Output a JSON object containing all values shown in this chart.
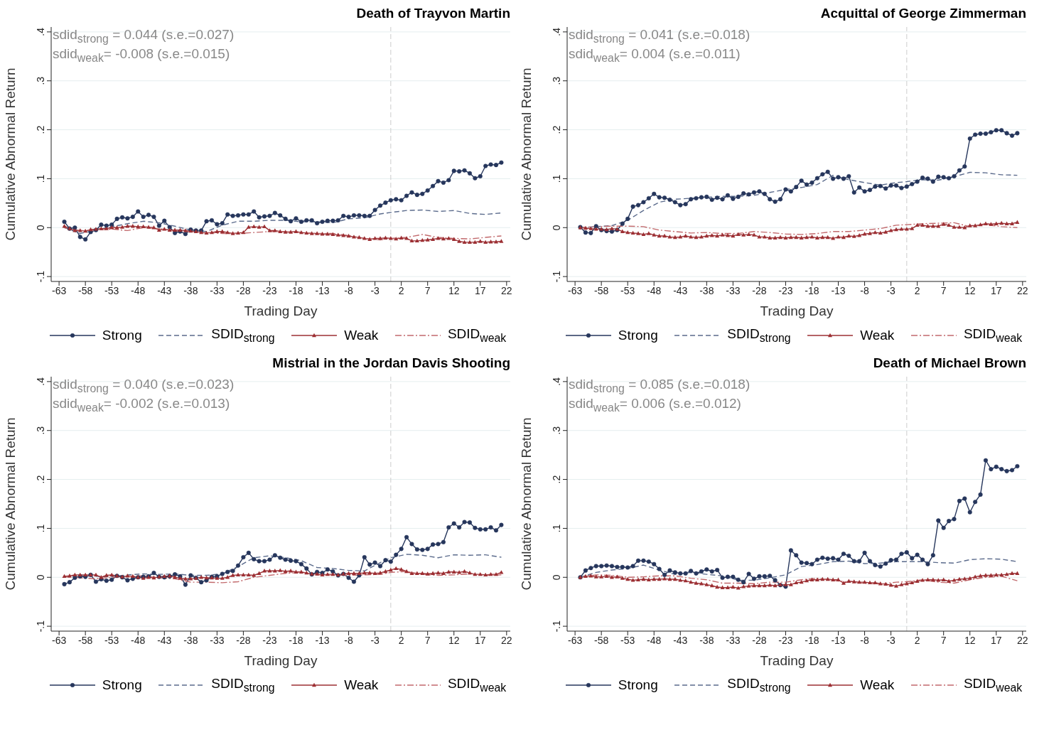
{
  "chart_data": [
    {
      "type": "line",
      "title": "Death of Trayvon Martin",
      "xlabel": "Trading Day",
      "ylabel": "Cumulative Abnormal Return",
      "annotations": [
        "sdid$_{strong}$ = 0.044 (s.e.=0.027)",
        "sdid$_{weak}$= -0.008 (s.e.=0.015)"
      ],
      "xlim": [
        -64.5,
        22.7
      ],
      "ylim": [
        -0.11,
        0.41
      ],
      "xticks": [
        -63,
        -58,
        -53,
        -48,
        -43,
        -38,
        -33,
        -28,
        -23,
        -18,
        -13,
        -8,
        -3,
        2,
        7,
        12,
        17,
        22
      ],
      "yticks": [
        {
          "value": -0.1,
          "label": "-.1"
        },
        {
          "value": 0,
          "label": "0"
        },
        {
          "value": 0.1,
          "label": ".1"
        },
        {
          "value": 0.2,
          "label": ".2"
        },
        {
          "value": 0.3,
          "label": ".3"
        },
        {
          "value": 0.4,
          "label": ".4"
        }
      ],
      "grid": "y",
      "legend": "bottom",
      "ref_lines": [
        {
          "axis": "x",
          "value": 0,
          "color": "#cccccc",
          "line_style": "dashed"
        }
      ],
      "x": [
        -62,
        -61,
        -60,
        -59,
        -58,
        -57,
        -56,
        -55,
        -54,
        -53,
        -52,
        -51,
        -50,
        -49,
        -48,
        -47,
        -46,
        -45,
        -44,
        -43,
        -42,
        -41,
        -40,
        -39,
        -38,
        -37,
        -36,
        -35,
        -34,
        -33,
        -32,
        -31,
        -30,
        -29,
        -28,
        -27,
        -26,
        -25,
        -24,
        -23,
        -22,
        -21,
        -20,
        -19,
        -18,
        -17,
        -16,
        -15,
        -14,
        -13,
        -12,
        -11,
        -10,
        -9,
        -8,
        -7,
        -6,
        -5,
        -4,
        -3,
        -2,
        -1,
        0,
        1,
        2,
        3,
        4,
        5,
        6,
        7,
        8,
        9,
        10,
        11,
        12,
        13,
        14,
        15,
        16,
        17,
        18,
        19,
        20,
        21
      ],
      "series": [
        {
          "name": "Strong",
          "color": "#26365c",
          "marker": "circle",
          "line_style": "solid",
          "values": [
            0.012,
            -0.002,
            0,
            -0.019,
            -0.024,
            -0.009,
            -0.005,
            0.006,
            0.004,
            0.006,
            0.018,
            0.021,
            0.019,
            0.022,
            0.033,
            0.022,
            0.026,
            0.022,
            0.004,
            0.014,
            0.001,
            -0.011,
            -0.008,
            -0.013,
            -0.004,
            -0.006,
            -0.006,
            0.013,
            0.015,
            0.007,
            0.009,
            0.027,
            0.024,
            0.025,
            0.027,
            0.027,
            0.033,
            0.021,
            0.023,
            0.024,
            0.03,
            0.025,
            0.018,
            0.013,
            0.019,
            0.012,
            0.015,
            0.015,
            0.009,
            0.012,
            0.014,
            0.014,
            0.015,
            0.024,
            0.022,
            0.025,
            0.025,
            0.024,
            0.024,
            0.036,
            0.045,
            0.051,
            0.056,
            0.058,
            0.056,
            0.065,
            0.072,
            0.067,
            0.069,
            0.076,
            0.085,
            0.095,
            0.092,
            0.097,
            0.116,
            0.115,
            0.117,
            0.111,
            0.101,
            0.105,
            0.126,
            0.129,
            0.128,
            0.133
          ]
        },
        {
          "name": "SDID$_{strong}$",
          "color": "#5b6b8c",
          "marker": "none",
          "line_style": "dashed",
          "x": [
            -62,
            -59,
            -56,
            -53,
            -50,
            -47,
            -44,
            -41,
            -38,
            -35,
            -32,
            -29,
            -26,
            -23,
            -20,
            -17,
            -14,
            -11,
            -8,
            -5,
            -2,
            0,
            3,
            6,
            9,
            12,
            15,
            18,
            21
          ],
          "values": [
            0,
            -0.012,
            -0.005,
            0.002,
            0.008,
            0.013,
            0.01,
            0.003,
            -0.005,
            -0.008,
            0.005,
            0.013,
            0.013,
            0.015,
            0.015,
            0.012,
            0.012,
            0.01,
            0.018,
            0.02,
            0.028,
            0.031,
            0.035,
            0.036,
            0.033,
            0.035,
            0.029,
            0.027,
            0.03
          ]
        },
        {
          "name": "Weak",
          "color": "#9c2f33",
          "marker": "triangle",
          "line_style": "solid",
          "values": [
            0.003,
            -0.002,
            -0.006,
            -0.006,
            -0.007,
            -0.004,
            -0.003,
            -0.002,
            -0.002,
            0.0,
            0.0,
            0.001,
            0.003,
            0.003,
            0.002,
            0.002,
            0.001,
            0.0,
            -0.005,
            -0.003,
            -0.005,
            -0.005,
            -0.005,
            -0.006,
            -0.007,
            -0.008,
            -0.01,
            -0.011,
            -0.01,
            -0.008,
            -0.008,
            -0.01,
            -0.012,
            -0.011,
            -0.01,
            0.001,
            0.002,
            0.001,
            0.002,
            -0.006,
            -0.006,
            -0.008,
            -0.009,
            -0.009,
            -0.008,
            -0.01,
            -0.011,
            -0.012,
            -0.012,
            -0.013,
            -0.013,
            -0.014,
            -0.015,
            -0.016,
            -0.017,
            -0.019,
            -0.02,
            -0.022,
            -0.024,
            -0.022,
            -0.022,
            -0.021,
            -0.022,
            -0.023,
            -0.021,
            -0.022,
            -0.027,
            -0.027,
            -0.026,
            -0.025,
            -0.024,
            -0.022,
            -0.023,
            -0.022,
            -0.024,
            -0.028,
            -0.03,
            -0.03,
            -0.03,
            -0.028,
            -0.03,
            -0.029,
            -0.029,
            -0.028
          ]
        },
        {
          "name": "SDID$_{weak}$",
          "color": "#c26a6d",
          "marker": "none",
          "line_style": "dashdot",
          "x": [
            -62,
            -59,
            -56,
            -53,
            -50,
            -47,
            -44,
            -41,
            -38,
            -35,
            -32,
            -29,
            -26,
            -23,
            -20,
            -17,
            -14,
            -11,
            -8,
            -5,
            -2,
            0,
            3,
            6,
            9,
            12,
            15,
            18,
            21
          ],
          "values": [
            0,
            -0.006,
            -0.005,
            -0.003,
            -0.006,
            0.0,
            -0.002,
            -0.007,
            -0.008,
            -0.01,
            -0.012,
            -0.012,
            -0.01,
            -0.008,
            -0.008,
            -0.01,
            -0.012,
            -0.012,
            -0.016,
            -0.022,
            -0.025,
            -0.022,
            -0.02,
            -0.014,
            -0.02,
            -0.022,
            -0.023,
            -0.02,
            -0.017
          ]
        }
      ]
    },
    {
      "type": "line",
      "title": "Acquittal of George Zimmerman",
      "xlabel": "Trading Day",
      "ylabel": "Cumulative Abnormal Return",
      "annotations": [
        "sdid$_{strong}$ = 0.041 (s.e.=0.018)",
        "sdid$_{weak}$= 0.004 (s.e.=0.011)"
      ],
      "xlim": [
        -64.5,
        22.7
      ],
      "ylim": [
        -0.11,
        0.41
      ],
      "xticks": [
        -63,
        -58,
        -53,
        -48,
        -43,
        -38,
        -33,
        -28,
        -23,
        -18,
        -13,
        -8,
        -3,
        2,
        7,
        12,
        17,
        22
      ],
      "yticks": [
        {
          "value": -0.1,
          "label": "-.1"
        },
        {
          "value": 0,
          "label": "0"
        },
        {
          "value": 0.1,
          "label": ".1"
        },
        {
          "value": 0.2,
          "label": ".2"
        },
        {
          "value": 0.3,
          "label": ".3"
        },
        {
          "value": 0.4,
          "label": ".4"
        }
      ],
      "grid": "y",
      "legend": "bottom",
      "ref_lines": [
        {
          "axis": "x",
          "value": 0,
          "color": "#cccccc",
          "line_style": "dashed"
        }
      ],
      "x": [
        -62,
        -61,
        -60,
        -59,
        -58,
        -57,
        -56,
        -55,
        -54,
        -53,
        -52,
        -51,
        -50,
        -49,
        -48,
        -47,
        -46,
        -45,
        -44,
        -43,
        -42,
        -41,
        -40,
        -39,
        -38,
        -37,
        -36,
        -35,
        -34,
        -33,
        -32,
        -31,
        -30,
        -29,
        -28,
        -27,
        -26,
        -25,
        -24,
        -23,
        -22,
        -21,
        -20,
        -19,
        -18,
        -17,
        -16,
        -15,
        -14,
        -13,
        -12,
        -11,
        -10,
        -9,
        -8,
        -7,
        -6,
        -5,
        -4,
        -3,
        -2,
        -1,
        0,
        1,
        2,
        3,
        4,
        5,
        6,
        7,
        8,
        9,
        10,
        11,
        12,
        13,
        14,
        15,
        16,
        17,
        18,
        19,
        20,
        21
      ],
      "series": [
        {
          "name": "Strong",
          "color": "#26365c",
          "marker": "circle",
          "line_style": "solid",
          "values": [
            0.001,
            -0.01,
            -0.011,
            0.003,
            -0.005,
            -0.007,
            -0.008,
            -0.005,
            0.008,
            0.018,
            0.043,
            0.046,
            0.052,
            0.06,
            0.069,
            0.062,
            0.061,
            0.057,
            0.052,
            0.046,
            0.048,
            0.058,
            0.06,
            0.062,
            0.063,
            0.057,
            0.061,
            0.058,
            0.066,
            0.059,
            0.063,
            0.07,
            0.068,
            0.072,
            0.074,
            0.069,
            0.058,
            0.053,
            0.058,
            0.078,
            0.074,
            0.083,
            0.096,
            0.088,
            0.092,
            0.101,
            0.109,
            0.114,
            0.1,
            0.103,
            0.1,
            0.105,
            0.072,
            0.082,
            0.074,
            0.077,
            0.084,
            0.085,
            0.08,
            0.086,
            0.086,
            0.081,
            0.084,
            0.089,
            0.094,
            0.102,
            0.1,
            0.094,
            0.104,
            0.103,
            0.101,
            0.105,
            0.117,
            0.125,
            0.182,
            0.19,
            0.192,
            0.192,
            0.195,
            0.199,
            0.199,
            0.193,
            0.188,
            0.193
          ]
        },
        {
          "name": "SDID$_{strong}$",
          "color": "#5b6b8c",
          "marker": "none",
          "line_style": "dashed",
          "x": [
            -62,
            -59,
            -56,
            -53,
            -50,
            -47,
            -44,
            -41,
            -38,
            -35,
            -32,
            -29,
            -26,
            -23,
            -20,
            -17,
            -14,
            -11,
            -8,
            -5,
            -2,
            0,
            3,
            6,
            9,
            12,
            15,
            18,
            21
          ],
          "values": [
            0,
            0.002,
            0.004,
            0.015,
            0.035,
            0.052,
            0.058,
            0.06,
            0.062,
            0.064,
            0.064,
            0.066,
            0.072,
            0.078,
            0.082,
            0.088,
            0.107,
            0.098,
            0.092,
            0.087,
            0.092,
            0.094,
            0.098,
            0.097,
            0.104,
            0.113,
            0.112,
            0.108,
            0.107
          ]
        },
        {
          "name": "Weak",
          "color": "#9c2f33",
          "marker": "triangle",
          "line_style": "solid",
          "values": [
            0.0,
            -0.001,
            -0.002,
            -0.003,
            -0.003,
            -0.004,
            -0.002,
            -0.003,
            -0.008,
            -0.01,
            -0.011,
            -0.012,
            -0.014,
            -0.012,
            -0.015,
            -0.017,
            -0.017,
            -0.019,
            -0.02,
            -0.019,
            -0.017,
            -0.019,
            -0.02,
            -0.019,
            -0.017,
            -0.016,
            -0.017,
            -0.015,
            -0.016,
            -0.017,
            -0.014,
            -0.015,
            -0.014,
            -0.015,
            -0.019,
            -0.019,
            -0.021,
            -0.021,
            -0.02,
            -0.021,
            -0.02,
            -0.02,
            -0.021,
            -0.02,
            -0.019,
            -0.021,
            -0.02,
            -0.02,
            -0.022,
            -0.019,
            -0.02,
            -0.017,
            -0.018,
            -0.016,
            -0.013,
            -0.012,
            -0.01,
            -0.011,
            -0.009,
            -0.006,
            -0.004,
            -0.003,
            -0.003,
            -0.002,
            0.005,
            0.005,
            0.003,
            0.003,
            0.003,
            0.007,
            0.005,
            0.001,
            0.001,
            0.0,
            0.004,
            0.004,
            0.006,
            0.008,
            0.007,
            0.008,
            0.009,
            0.008,
            0.008,
            0.011
          ]
        },
        {
          "name": "SDID$_{weak}$",
          "color": "#c26a6d",
          "marker": "none",
          "line_style": "dashdot",
          "x": [
            -62,
            -59,
            -56,
            -53,
            -50,
            -47,
            -44,
            -41,
            -38,
            -35,
            -32,
            -29,
            -26,
            -23,
            -20,
            -17,
            -14,
            -11,
            -8,
            -5,
            -2,
            0,
            3,
            6,
            9,
            12,
            15,
            18,
            21
          ],
          "values": [
            0,
            0.002,
            0.003,
            0.003,
            0.002,
            -0.005,
            -0.008,
            -0.011,
            -0.01,
            -0.012,
            -0.012,
            -0.008,
            -0.01,
            -0.013,
            -0.014,
            -0.012,
            -0.008,
            -0.008,
            -0.005,
            -0.002,
            0.005,
            0.006,
            0.008,
            0.009,
            0.01,
            0.002,
            0.006,
            0.002,
            0.0
          ]
        }
      ]
    },
    {
      "type": "line",
      "title": "Mistrial in the Jordan Davis Shooting",
      "xlabel": "Trading Day",
      "ylabel": "Cumulative Abnormal Return",
      "annotations": [
        "sdid$_{strong}$ = 0.040 (s.e.=0.023)",
        "sdid$_{weak}$= -0.002 (s.e.=0.013)"
      ],
      "xlim": [
        -64.5,
        22.7
      ],
      "ylim": [
        -0.11,
        0.41
      ],
      "xticks": [
        -63,
        -58,
        -53,
        -48,
        -43,
        -38,
        -33,
        -28,
        -23,
        -18,
        -13,
        -8,
        -3,
        2,
        7,
        12,
        17,
        22
      ],
      "yticks": [
        {
          "value": -0.1,
          "label": "-.1"
        },
        {
          "value": 0,
          "label": "0"
        },
        {
          "value": 0.1,
          "label": ".1"
        },
        {
          "value": 0.2,
          "label": ".2"
        },
        {
          "value": 0.3,
          "label": ".3"
        },
        {
          "value": 0.4,
          "label": ".4"
        }
      ],
      "grid": "y",
      "legend": "bottom",
      "ref_lines": [
        {
          "axis": "x",
          "value": 0,
          "color": "#cccccc",
          "line_style": "dashed"
        }
      ],
      "x": [
        -62,
        -61,
        -60,
        -59,
        -58,
        -57,
        -56,
        -55,
        -54,
        -53,
        -52,
        -51,
        -50,
        -49,
        -48,
        -47,
        -46,
        -45,
        -44,
        -43,
        -42,
        -41,
        -40,
        -39,
        -38,
        -37,
        -36,
        -35,
        -34,
        -33,
        -32,
        -31,
        -30,
        -29,
        -28,
        -27,
        -26,
        -25,
        -24,
        -23,
        -22,
        -21,
        -20,
        -19,
        -18,
        -17,
        -16,
        -15,
        -14,
        -13,
        -12,
        -11,
        -10,
        -9,
        -8,
        -7,
        -6,
        -5,
        -4,
        -3,
        -2,
        -1,
        0,
        1,
        2,
        3,
        4,
        5,
        6,
        7,
        8,
        9,
        10,
        11,
        12,
        13,
        14,
        15,
        16,
        17,
        18,
        19,
        20,
        21
      ],
      "series": [
        {
          "name": "Strong",
          "color": "#26365c",
          "marker": "circle",
          "line_style": "solid",
          "values": [
            -0.014,
            -0.01,
            -0.001,
            0.002,
            0.001,
            0.005,
            -0.009,
            -0.004,
            -0.007,
            -0.005,
            0.003,
            0.0,
            -0.006,
            -0.003,
            0.0,
            0.001,
            0.002,
            0.009,
            0.001,
            0.0,
            0.002,
            0.006,
            0.002,
            -0.015,
            0.004,
            -0.001,
            -0.01,
            -0.006,
            0.001,
            0.002,
            0.007,
            0.011,
            0.013,
            0.024,
            0.041,
            0.05,
            0.037,
            0.033,
            0.033,
            0.036,
            0.045,
            0.04,
            0.036,
            0.034,
            0.033,
            0.027,
            0.018,
            0.006,
            0.011,
            0.009,
            0.016,
            0.012,
            0.004,
            0.007,
            -0.001,
            -0.009,
            0.004,
            0.041,
            0.026,
            0.03,
            0.023,
            0.035,
            0.032,
            0.046,
            0.058,
            0.082,
            0.068,
            0.057,
            0.056,
            0.058,
            0.067,
            0.068,
            0.072,
            0.102,
            0.11,
            0.102,
            0.113,
            0.112,
            0.101,
            0.098,
            0.098,
            0.102,
            0.096,
            0.107
          ]
        },
        {
          "name": "SDID$_{strong}$",
          "color": "#5b6b8c",
          "marker": "none",
          "line_style": "dashed",
          "x": [
            -62,
            -59,
            -56,
            -53,
            -50,
            -47,
            -44,
            -41,
            -38,
            -35,
            -32,
            -29,
            -26,
            -23,
            -20,
            -17,
            -14,
            -11,
            -8,
            -5,
            -2,
            0,
            3,
            6,
            9,
            12,
            15,
            18,
            21
          ],
          "values": [
            0.002,
            0.003,
            0.002,
            0.001,
            0.005,
            0.007,
            0.006,
            0.007,
            0.004,
            0.004,
            0.007,
            0.022,
            0.04,
            0.044,
            0.04,
            0.034,
            0.02,
            0.018,
            0.014,
            0.013,
            0.03,
            0.04,
            0.047,
            0.045,
            0.04,
            0.046,
            0.045,
            0.046,
            0.041
          ]
        },
        {
          "name": "Weak",
          "color": "#9c2f33",
          "marker": "triangle",
          "line_style": "solid",
          "values": [
            0.002,
            0.003,
            0.005,
            0.005,
            0.005,
            0.005,
            0.005,
            0.0,
            0.004,
            0.005,
            0.003,
            0.001,
            0.003,
            0.002,
            0.0,
            -0.002,
            0.0,
            -0.001,
            0.001,
            0.002,
            0.003,
            0.0,
            -0.002,
            -0.003,
            -0.003,
            -0.002,
            0.0,
            -0.001,
            -0.001,
            -0.002,
            -0.002,
            0.0,
            0.004,
            0.005,
            0.005,
            0.005,
            0.004,
            0.008,
            0.013,
            0.013,
            0.013,
            0.014,
            0.012,
            0.013,
            0.011,
            0.011,
            0.009,
            0.007,
            0.007,
            0.005,
            0.006,
            0.006,
            0.005,
            0.007,
            0.008,
            0.008,
            0.008,
            0.009,
            0.009,
            0.008,
            0.009,
            0.012,
            0.015,
            0.018,
            0.016,
            0.012,
            0.008,
            0.008,
            0.008,
            0.007,
            0.008,
            0.009,
            0.008,
            0.011,
            0.011,
            0.01,
            0.012,
            0.009,
            0.006,
            0.006,
            0.005,
            0.006,
            0.006,
            0.01
          ]
        },
        {
          "name": "SDID$_{weak}$",
          "color": "#c26a6d",
          "marker": "none",
          "line_style": "dashdot",
          "x": [
            -62,
            -59,
            -56,
            -53,
            -50,
            -47,
            -44,
            -41,
            -38,
            -35,
            -32,
            -29,
            -26,
            -23,
            -20,
            -17,
            -14,
            -11,
            -8,
            -5,
            -2,
            0,
            3,
            6,
            9,
            12,
            15,
            18,
            21
          ],
          "values": [
            0.001,
            -0.001,
            -0.003,
            0.0,
            0.002,
            0.003,
            -0.001,
            -0.003,
            -0.01,
            -0.01,
            -0.011,
            -0.009,
            0.0,
            0.004,
            0.008,
            0.01,
            0.005,
            0.005,
            0.004,
            0.005,
            0.006,
            0.01,
            0.012,
            0.006,
            0.004,
            0.005,
            0.007,
            0.004,
            0.005
          ]
        }
      ]
    },
    {
      "type": "line",
      "title": "Death of Michael Brown",
      "xlabel": "Trading Day",
      "ylabel": "Cumulative Abnormal Return",
      "annotations": [
        "sdid$_{strong}$ = 0.085 (s.e.=0.018)",
        "sdid$_{weak}$= 0.006 (s.e.=0.012)"
      ],
      "xlim": [
        -64.5,
        22.7
      ],
      "ylim": [
        -0.11,
        0.41
      ],
      "xticks": [
        -63,
        -58,
        -53,
        -48,
        -43,
        -38,
        -33,
        -28,
        -23,
        -18,
        -13,
        -8,
        -3,
        2,
        7,
        12,
        17,
        22
      ],
      "yticks": [
        {
          "value": -0.1,
          "label": "-.1"
        },
        {
          "value": 0,
          "label": "0"
        },
        {
          "value": 0.1,
          "label": ".1"
        },
        {
          "value": 0.2,
          "label": ".2"
        },
        {
          "value": 0.3,
          "label": ".3"
        },
        {
          "value": 0.4,
          "label": ".4"
        }
      ],
      "grid": "y",
      "legend": "bottom",
      "ref_lines": [
        {
          "axis": "x",
          "value": 0,
          "color": "#cccccc",
          "line_style": "dashed"
        }
      ],
      "x": [
        -62,
        -61,
        -60,
        -59,
        -58,
        -57,
        -56,
        -55,
        -54,
        -53,
        -52,
        -51,
        -50,
        -49,
        -48,
        -47,
        -46,
        -45,
        -44,
        -43,
        -42,
        -41,
        -40,
        -39,
        -38,
        -37,
        -36,
        -35,
        -34,
        -33,
        -32,
        -31,
        -30,
        -29,
        -28,
        -27,
        -26,
        -25,
        -24,
        -23,
        -22,
        -21,
        -20,
        -19,
        -18,
        -17,
        -16,
        -15,
        -14,
        -13,
        -12,
        -11,
        -10,
        -9,
        -8,
        -7,
        -6,
        -5,
        -4,
        -3,
        -2,
        -1,
        0,
        1,
        2,
        3,
        4,
        5,
        6,
        7,
        8,
        9,
        10,
        11,
        12,
        13,
        14,
        15,
        16,
        17,
        18,
        19,
        20,
        21
      ],
      "series": [
        {
          "name": "Strong",
          "color": "#26365c",
          "marker": "circle",
          "line_style": "solid",
          "values": [
            0.0,
            0.014,
            0.019,
            0.023,
            0.023,
            0.024,
            0.023,
            0.021,
            0.021,
            0.02,
            0.023,
            0.034,
            0.034,
            0.032,
            0.027,
            0.017,
            0.005,
            0.014,
            0.01,
            0.008,
            0.008,
            0.013,
            0.008,
            0.012,
            0.016,
            0.012,
            0.015,
            -0.001,
            0.001,
            0.001,
            -0.005,
            -0.01,
            0.007,
            -0.003,
            0.002,
            0.002,
            0.003,
            -0.006,
            -0.016,
            -0.019,
            0.055,
            0.045,
            0.03,
            0.029,
            0.027,
            0.036,
            0.04,
            0.038,
            0.039,
            0.036,
            0.048,
            0.044,
            0.033,
            0.033,
            0.05,
            0.033,
            0.025,
            0.022,
            0.028,
            0.035,
            0.036,
            0.048,
            0.051,
            0.039,
            0.046,
            0.036,
            0.027,
            0.045,
            0.116,
            0.101,
            0.115,
            0.119,
            0.156,
            0.161,
            0.133,
            0.154,
            0.169,
            0.239,
            0.221,
            0.226,
            0.221,
            0.217,
            0.219,
            0.227
          ]
        },
        {
          "name": "SDID$_{strong}$",
          "color": "#5b6b8c",
          "marker": "none",
          "line_style": "dashed",
          "x": [
            -62,
            -59,
            -56,
            -53,
            -50,
            -47,
            -44,
            -41,
            -38,
            -35,
            -32,
            -29,
            -26,
            -23,
            -20,
            -17,
            -14,
            -11,
            -8,
            -5,
            -2,
            0,
            3,
            6,
            9,
            12,
            15,
            18,
            21
          ],
          "values": [
            0,
            0.01,
            0.015,
            0.018,
            0.025,
            0.015,
            0.006,
            0.01,
            0.006,
            0.003,
            -0.006,
            -0.006,
            -0.001,
            0.005,
            0.022,
            0.026,
            0.032,
            0.033,
            0.028,
            0.029,
            0.032,
            0.032,
            0.032,
            0.03,
            0.029,
            0.036,
            0.038,
            0.037,
            0.032
          ]
        },
        {
          "name": "Weak",
          "color": "#9c2f33",
          "marker": "triangle",
          "line_style": "solid",
          "values": [
            0.0,
            0.002,
            0.003,
            0.001,
            0.001,
            0.002,
            0.0,
            0.001,
            -0.002,
            -0.004,
            -0.006,
            -0.005,
            -0.004,
            -0.005,
            -0.004,
            -0.004,
            -0.003,
            -0.004,
            -0.004,
            -0.006,
            -0.007,
            -0.01,
            -0.012,
            -0.013,
            -0.015,
            -0.017,
            -0.02,
            -0.021,
            -0.021,
            -0.02,
            -0.022,
            -0.019,
            -0.018,
            -0.017,
            -0.017,
            -0.017,
            -0.016,
            -0.017,
            -0.015,
            -0.015,
            -0.015,
            -0.011,
            -0.01,
            -0.007,
            -0.005,
            -0.005,
            -0.004,
            -0.004,
            -0.005,
            -0.005,
            -0.012,
            -0.008,
            -0.009,
            -0.01,
            -0.01,
            -0.011,
            -0.011,
            -0.013,
            -0.014,
            -0.016,
            -0.018,
            -0.015,
            -0.013,
            -0.011,
            -0.008,
            -0.006,
            -0.005,
            -0.005,
            -0.006,
            -0.005,
            -0.008,
            -0.006,
            -0.004,
            -0.003,
            -0.002,
            0.001,
            0.003,
            0.004,
            0.004,
            0.005,
            0.005,
            0.006,
            0.008,
            0.008
          ]
        },
        {
          "name": "SDID$_{weak}$",
          "color": "#c26a6d",
          "marker": "none",
          "line_style": "dashdot",
          "x": [
            -62,
            -59,
            -56,
            -53,
            -50,
            -47,
            -44,
            -41,
            -38,
            -35,
            -32,
            -29,
            -26,
            -23,
            -20,
            -17,
            -14,
            -11,
            -8,
            -5,
            -2,
            0,
            3,
            6,
            9,
            12,
            15,
            18,
            21
          ],
          "values": [
            0,
            0.005,
            0.004,
            0.0,
            0.001,
            0.003,
            0.003,
            -0.002,
            -0.005,
            -0.012,
            -0.012,
            -0.013,
            -0.01,
            -0.01,
            -0.005,
            -0.002,
            -0.006,
            -0.01,
            -0.012,
            -0.014,
            -0.01,
            -0.009,
            -0.005,
            -0.01,
            -0.012,
            -0.005,
            0.0,
            0.002,
            -0.007
          ]
        }
      ]
    }
  ]
}
